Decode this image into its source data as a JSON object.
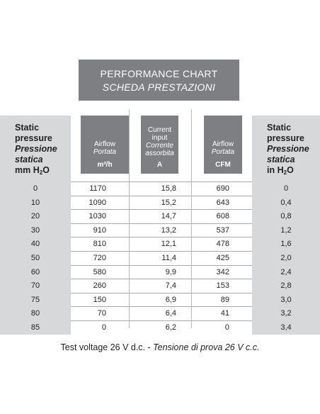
{
  "title": {
    "line1": "PERFORMANCE CHART",
    "line2": "SCHEDA PRESTAZIONI"
  },
  "headers": {
    "left": {
      "l1": "Static",
      "l2": "pressure",
      "l3": "Pressione",
      "l4": "statica",
      "l5a": "mm H",
      "l5b": "2",
      "l5c": "O"
    },
    "airflow_m3h": {
      "l1": "Airflow",
      "l2": "Portata",
      "unit": "m³/h"
    },
    "current": {
      "l1": "Current",
      "l2": "input",
      "l3": "Corrente",
      "l4": "assorbita",
      "unit": "A"
    },
    "airflow_cfm": {
      "l1": "Airflow",
      "l2": "Portata",
      "unit": "CFM"
    },
    "right": {
      "l1": "Static",
      "l2": "pressure",
      "l3": "Pressione",
      "l4": "statica",
      "l5a": "in H",
      "l5b": "2",
      "l5c": "O"
    }
  },
  "rows": [
    [
      "0",
      "1170",
      "15,8",
      "690",
      "0"
    ],
    [
      "10",
      "1090",
      "15,2",
      "643",
      "0,4"
    ],
    [
      "20",
      "1030",
      "14,7",
      "608",
      "0,8"
    ],
    [
      "30",
      "910",
      "13,2",
      "537",
      "1,2"
    ],
    [
      "40",
      "810",
      "12,1",
      "478",
      "1,6"
    ],
    [
      "50",
      "720",
      "11,4",
      "425",
      "2,0"
    ],
    [
      "60",
      "580",
      "9,9",
      "342",
      "2,4"
    ],
    [
      "70",
      "260",
      "7,4",
      "153",
      "2,8"
    ],
    [
      "75",
      "150",
      "6,9",
      "89",
      "3,0"
    ],
    [
      "80",
      "70",
      "6,4",
      "41",
      "3,2"
    ],
    [
      "85",
      "0",
      "6,2",
      "0",
      "3,4"
    ]
  ],
  "footer": {
    "normal": "Test voltage 26 V d.c. - ",
    "italic": "Tensione di prova 26 V c.c."
  }
}
